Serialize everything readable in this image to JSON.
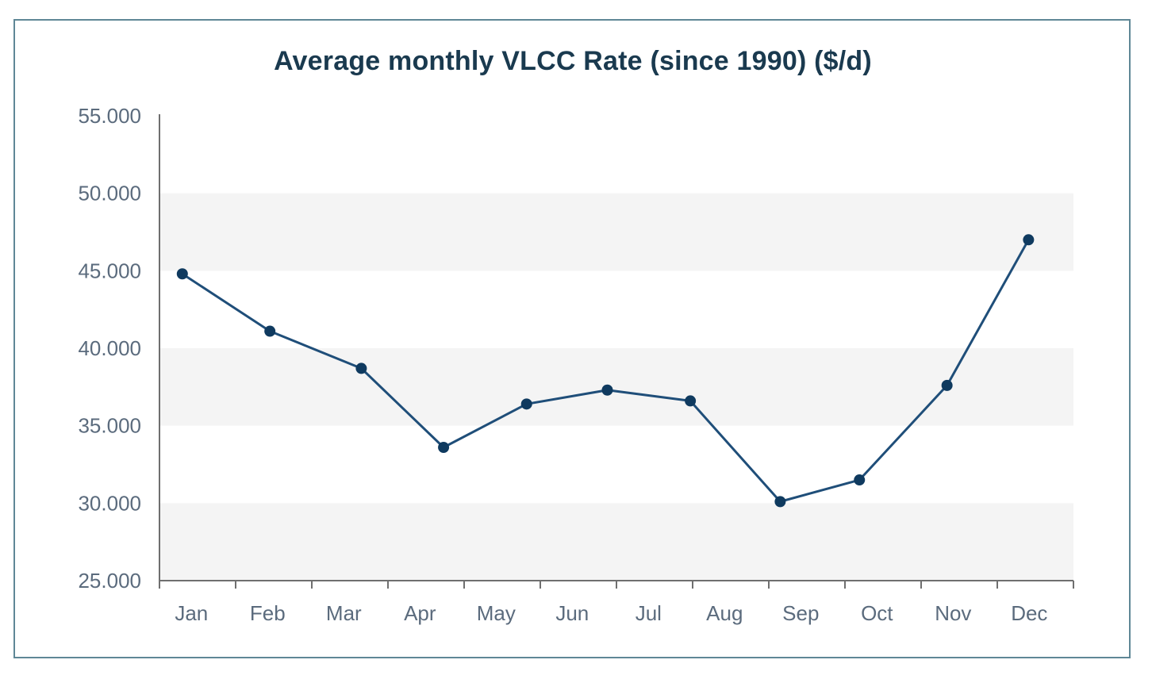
{
  "chart_data": {
    "type": "line",
    "title": "Average monthly VLCC Rate (since 1990) ($/d)",
    "xlabel": "",
    "ylabel": "",
    "categories": [
      "Jan",
      "Feb",
      "Mar",
      "Apr",
      "May",
      "Jun",
      "Jul",
      "Aug",
      "Sep",
      "Oct",
      "Nov",
      "Dec"
    ],
    "series": [
      {
        "values": [
          44800,
          41100,
          38700,
          33600,
          36400,
          37300,
          36600,
          null,
          30100,
          31500,
          37600,
          47000
        ],
        "x_positions": [
          0.3,
          1.45,
          2.65,
          3.73,
          4.82,
          5.88,
          6.97,
          null,
          8.15,
          9.19,
          10.34,
          11.41
        ],
        "color": "#1f4e79"
      }
    ],
    "ylim": [
      25000,
      55000
    ],
    "yticks": [
      "25.000",
      "30.000",
      "35.000",
      "40.000",
      "45.000",
      "50.000",
      "55.000"
    ],
    "band_color": "#f4f4f4",
    "axis_color": "#6f6f6f",
    "legend": "none",
    "grid": false
  }
}
